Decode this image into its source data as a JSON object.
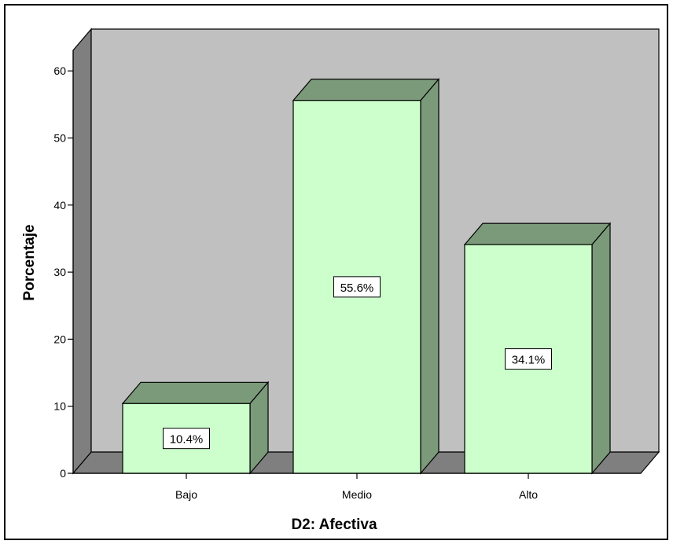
{
  "chart_data": {
    "type": "bar",
    "style": "3d",
    "title": "",
    "xlabel": "D2: Afectiva",
    "ylabel": "Porcentaje",
    "categories": [
      "Bajo",
      "Medio",
      "Alto"
    ],
    "values": [
      10.4,
      55.6,
      34.1
    ],
    "data_labels": [
      "10.4%",
      "55.6%",
      "34.1%"
    ],
    "ylim": [
      0,
      60
    ],
    "yticks": [
      "0",
      "10",
      "20",
      "30",
      "40",
      "50",
      "60"
    ],
    "grid": false,
    "legend": "none",
    "colors": {
      "bar_front": "#ccffcc",
      "bar_top_side": "#7a9a7a",
      "back_wall": "#c0c0c0",
      "side_wall": "#7f7f7f",
      "floor": "#7f7f7f",
      "border": "#000000"
    }
  }
}
